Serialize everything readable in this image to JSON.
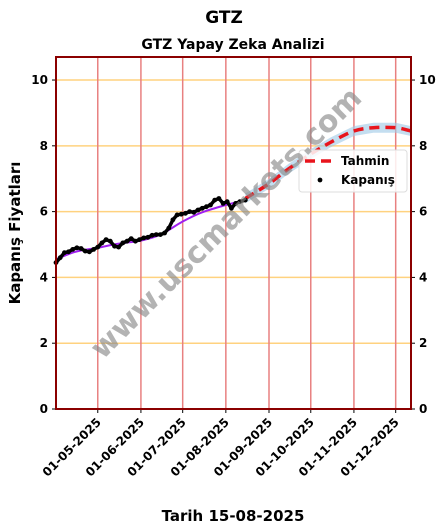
{
  "chart_data": {
    "type": "line",
    "suptitle": "GTZ",
    "title": "GTZ Yapay Zeka Analizi",
    "xlabel": "Tarih 15-08-2025",
    "ylabel": "Kapanış Fiyatları",
    "ylim": [
      0,
      10.7
    ],
    "yticks": [
      0,
      2,
      4,
      6,
      8,
      10
    ],
    "xlim": [
      "2025-04-01",
      "2025-12-12"
    ],
    "xticks": [
      "01-05-2025",
      "01-06-2025",
      "01-07-2025",
      "01-08-2025",
      "01-09-2025",
      "01-10-2025",
      "01-11-2025",
      "01-12-2025"
    ],
    "grid": {
      "horizontal_color": "#ffd27f",
      "vertical_color": "#e88080"
    },
    "legend_position": "center-right",
    "series": [
      {
        "name": "Kapanış",
        "style": "scatter",
        "color": "#000000",
        "x": [
          "2025-04-01",
          "2025-04-04",
          "2025-04-07",
          "2025-04-10",
          "2025-04-13",
          "2025-04-16",
          "2025-04-19",
          "2025-04-22",
          "2025-04-25",
          "2025-04-28",
          "2025-05-01",
          "2025-05-04",
          "2025-05-07",
          "2025-05-10",
          "2025-05-13",
          "2025-05-16",
          "2025-05-19",
          "2025-05-22",
          "2025-05-25",
          "2025-05-28",
          "2025-05-31",
          "2025-06-03",
          "2025-06-06",
          "2025-06-09",
          "2025-06-12",
          "2025-06-15",
          "2025-06-18",
          "2025-06-21",
          "2025-06-24",
          "2025-06-27",
          "2025-06-30",
          "2025-07-03",
          "2025-07-06",
          "2025-07-09",
          "2025-07-12",
          "2025-07-15",
          "2025-07-18",
          "2025-07-21",
          "2025-07-24",
          "2025-07-27",
          "2025-07-30",
          "2025-08-02",
          "2025-08-05",
          "2025-08-08",
          "2025-08-11",
          "2025-08-15"
        ],
        "y": [
          4.45,
          4.6,
          4.75,
          4.78,
          4.85,
          4.9,
          4.88,
          4.8,
          4.78,
          4.85,
          4.92,
          5.05,
          5.15,
          5.1,
          4.95,
          4.92,
          5.05,
          5.1,
          5.18,
          5.1,
          5.15,
          5.2,
          5.22,
          5.28,
          5.3,
          5.3,
          5.35,
          5.5,
          5.75,
          5.9,
          5.92,
          5.95,
          6.0,
          5.98,
          6.05,
          6.1,
          6.15,
          6.2,
          6.35,
          6.4,
          6.25,
          6.3,
          6.1,
          6.25,
          6.3,
          6.35
        ]
      },
      {
        "name": "",
        "style": "smooth",
        "color": "#a020f0",
        "x": [
          "2025-04-01",
          "2025-04-15",
          "2025-05-01",
          "2025-05-15",
          "2025-06-01",
          "2025-06-15",
          "2025-07-01",
          "2025-07-15",
          "2025-08-01",
          "2025-08-15"
        ],
        "y": [
          4.55,
          4.78,
          4.9,
          5.02,
          5.12,
          5.3,
          5.7,
          5.98,
          6.2,
          6.35
        ]
      },
      {
        "name": "Tahmin",
        "style": "dashed",
        "color": "#e8141c",
        "band": 0.15,
        "x": [
          "2025-08-15",
          "2025-09-01",
          "2025-09-15",
          "2025-10-01",
          "2025-10-15",
          "2025-11-01",
          "2025-11-15",
          "2025-12-01",
          "2025-12-12"
        ],
        "y": [
          6.4,
          6.85,
          7.3,
          7.75,
          8.1,
          8.45,
          8.55,
          8.55,
          8.45
        ]
      }
    ],
    "watermark": "www.uscmarkets.com"
  }
}
